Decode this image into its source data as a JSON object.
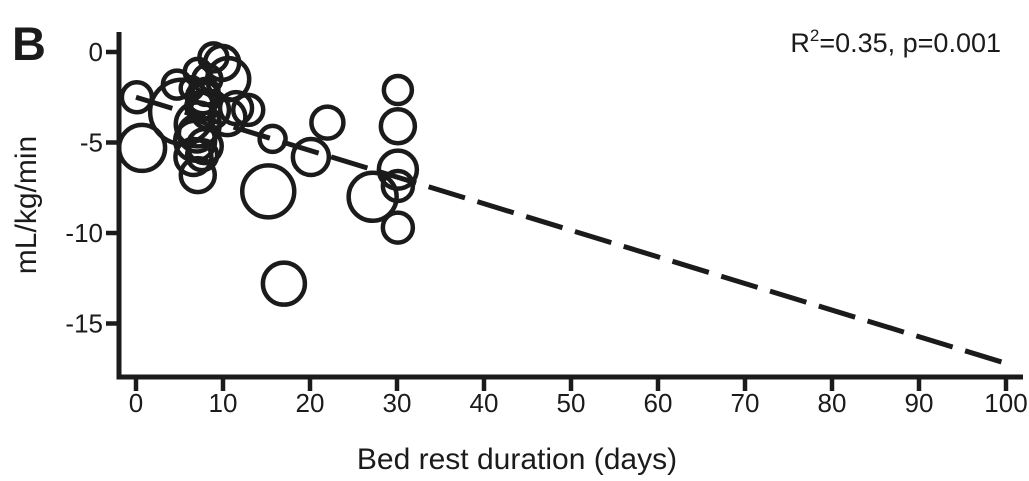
{
  "figure": {
    "panel_label": "B",
    "annotation": {
      "stat_base": "R",
      "stat_sup": "2",
      "stat_rest": "=0.35, p=0.001",
      "full_text": "R²=0.35, p=0.001"
    },
    "colors": {
      "ink": "#1b1b1b",
      "background": "#ffffff"
    }
  },
  "chart_data": {
    "type": "scatter",
    "subtype": "bubble-open-circles",
    "title": "",
    "xlabel": "Bed rest duration (days)",
    "ylabel": "mL/kg/min",
    "xlim": [
      0,
      100
    ],
    "ylim": [
      -17.5,
      1
    ],
    "xticks": [
      0,
      10,
      20,
      30,
      40,
      50,
      60,
      70,
      80,
      90,
      100
    ],
    "yticks": [
      0,
      -5,
      -10,
      -15
    ],
    "grid": false,
    "legend": null,
    "annotation_text": "R²=0.35, p=0.001",
    "marker": "open-circle",
    "points": [
      {
        "x": 0.1,
        "y": -2.5,
        "r": 15
      },
      {
        "x": 0.7,
        "y": -5.3,
        "r": 23
      },
      {
        "x": 4.7,
        "y": -1.8,
        "r": 14
      },
      {
        "x": 5.3,
        "y": -3.3,
        "r": 32
      },
      {
        "x": 7.1,
        "y": -1.1,
        "r": 13
      },
      {
        "x": 8.9,
        "y": -0.3,
        "r": 14
      },
      {
        "x": 9.9,
        "y": -0.6,
        "r": 17
      },
      {
        "x": 10.6,
        "y": -1.5,
        "r": 21
      },
      {
        "x": 8.2,
        "y": -1.5,
        "r": 14
      },
      {
        "x": 6.4,
        "y": -2.0,
        "r": 11
      },
      {
        "x": 7.7,
        "y": -2.5,
        "r": 16
      },
      {
        "x": 8.0,
        "y": -2.2,
        "r": 13
      },
      {
        "x": 8.5,
        "y": -3.2,
        "r": 19
      },
      {
        "x": 7.4,
        "y": -3.0,
        "r": 14
      },
      {
        "x": 7.1,
        "y": -4.0,
        "r": 22
      },
      {
        "x": 7.0,
        "y": -4.5,
        "r": 18
      },
      {
        "x": 6.8,
        "y": -4.9,
        "r": 20
      },
      {
        "x": 7.9,
        "y": -5.2,
        "r": 17
      },
      {
        "x": 7.6,
        "y": -5.7,
        "r": 15
      },
      {
        "x": 6.6,
        "y": -5.8,
        "r": 18
      },
      {
        "x": 7.1,
        "y": -6.8,
        "r": 17
      },
      {
        "x": 10.5,
        "y": -3.6,
        "r": 18
      },
      {
        "x": 11.5,
        "y": -3.1,
        "r": 16
      },
      {
        "x": 12.9,
        "y": -3.2,
        "r": 15
      },
      {
        "x": 15.7,
        "y": -4.8,
        "r": 13
      },
      {
        "x": 20.1,
        "y": -5.8,
        "r": 18
      },
      {
        "x": 22.0,
        "y": -3.9,
        "r": 16
      },
      {
        "x": 15.2,
        "y": -7.7,
        "r": 26
      },
      {
        "x": 17.0,
        "y": -12.8,
        "r": 21
      },
      {
        "x": 27.2,
        "y": -8.0,
        "r": 24
      },
      {
        "x": 30.1,
        "y": -2.1,
        "r": 14
      },
      {
        "x": 30.1,
        "y": -4.1,
        "r": 17
      },
      {
        "x": 30.1,
        "y": -6.5,
        "r": 19
      },
      {
        "x": 30.1,
        "y": -7.4,
        "r": 15
      },
      {
        "x": 30.1,
        "y": -9.7,
        "r": 15
      }
    ],
    "regression_line": {
      "style": "dashed",
      "x1": 0,
      "y1": -2.5,
      "x2": 100,
      "y2": -17.2
    }
  }
}
